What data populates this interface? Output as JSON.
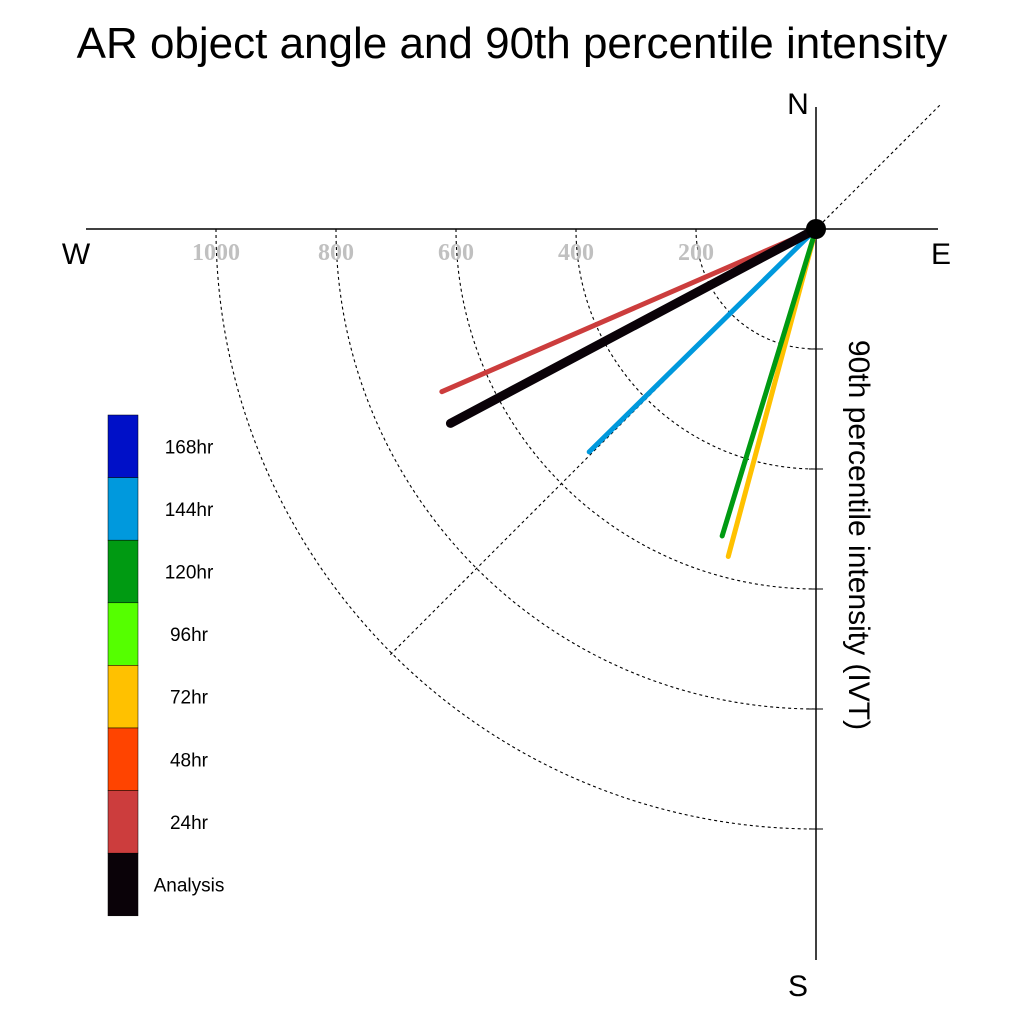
{
  "chart_data": {
    "type": "polar-vector",
    "title": "AR object angle and 90th percentile intensity",
    "ylabel": "90th percentile intensity (IVT)",
    "compass": {
      "north": "N",
      "south": "S",
      "east": "E",
      "west": "W"
    },
    "radial_ticks": [
      "1000",
      "800",
      "600",
      "400",
      "200"
    ],
    "radial_tick_values": [
      1000,
      800,
      600,
      400,
      200
    ],
    "radial_circle_values": [
      200,
      400,
      600,
      800,
      1000
    ],
    "diagonal_guides_deg": [
      45,
      225
    ],
    "r_max": 1000,
    "series": [
      {
        "name": "24hr",
        "angle_deg": 246.5,
        "intensity": 680,
        "color": "#cc3d3d"
      },
      {
        "name": "72hr",
        "angle_deg": 195.0,
        "intensity": 565,
        "color": "#ffc100"
      },
      {
        "name": "120hr",
        "angle_deg": 197.0,
        "intensity": 535,
        "color": "#009a12"
      },
      {
        "name": "144hr",
        "angle_deg": 225.5,
        "intensity": 530,
        "color": "#0099dd"
      },
      {
        "name": "Analysis",
        "angle_deg": 242.0,
        "intensity": 690,
        "color": "#0a0208"
      }
    ],
    "legend": [
      {
        "label": "168hr",
        "color": "#0010c8"
      },
      {
        "label": "144hr",
        "color": "#0099dd"
      },
      {
        "label": "120hr",
        "color": "#009a12"
      },
      {
        "label": "96hr",
        "color": "#55ff00"
      },
      {
        "label": "72hr",
        "color": "#ffc100"
      },
      {
        "label": "48hr",
        "color": "#ff4400"
      },
      {
        "label": "24hr",
        "color": "#cc3d3d"
      },
      {
        "label": "Analysis",
        "color": "#0a0208"
      }
    ]
  }
}
